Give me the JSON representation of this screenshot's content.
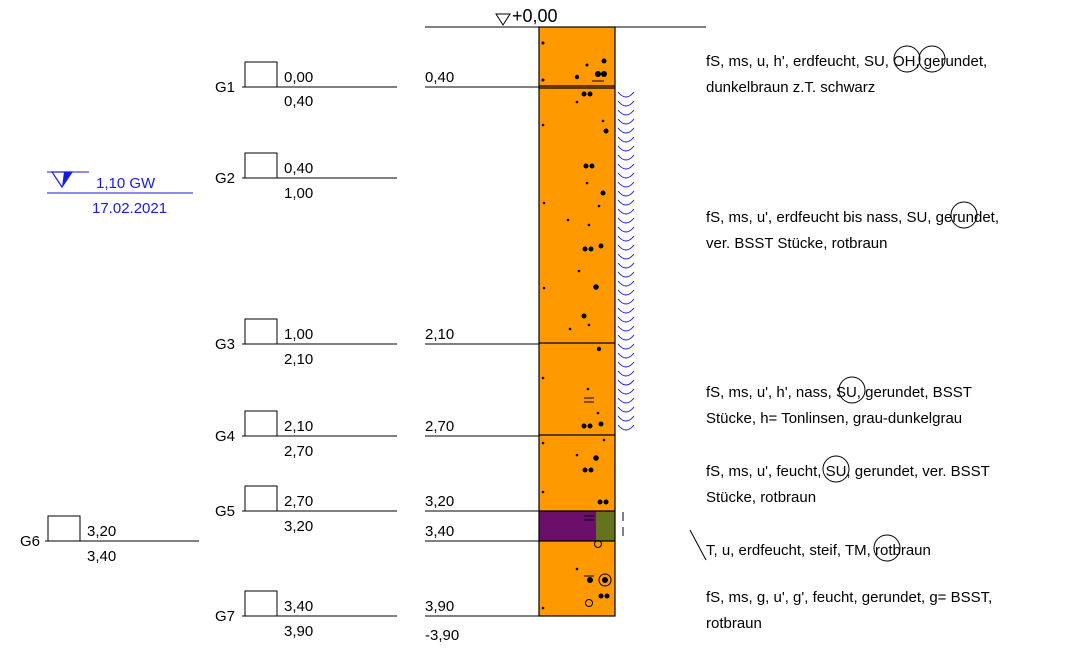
{
  "top_level": "+0,00",
  "groundwater": {
    "depth": "1,10 GW",
    "date": "17.02.2021",
    "color": "#1a1ae6"
  },
  "samples": [
    {
      "id": "G1",
      "top": "0,00",
      "bottom": "0,40"
    },
    {
      "id": "G2",
      "top": "0,40",
      "bottom": "1,00"
    },
    {
      "id": "G3",
      "top": "1,00",
      "bottom": "2,10"
    },
    {
      "id": "G4",
      "top": "2,10",
      "bottom": "2,70"
    },
    {
      "id": "G5",
      "top": "2,70",
      "bottom": "3,20"
    },
    {
      "id": "G6",
      "top": "3,20",
      "bottom": "3,40"
    },
    {
      "id": "G7",
      "top": "3,40",
      "bottom": "3,90"
    }
  ],
  "layer_depths": [
    "0,40",
    "2,10",
    "2,70",
    "3,20",
    "3,40",
    "3,90"
  ],
  "final_depth": "-3,90",
  "colors": {
    "sand": "#ff9900",
    "clay": "#6b0f6b",
    "silt_band": "#66731e"
  },
  "descriptions": [
    {
      "pre": "fS, ms, u, h', erdfeucht, ",
      "symbols": [
        "SU",
        "OH"
      ],
      "post": ", gerundet,",
      "line2": "dunkelbraun z.T. schwarz"
    },
    {
      "pre": "fS, ms, u', erdfeucht bis nass, ",
      "symbols": [
        "SU"
      ],
      "post": ", gerundet,",
      "line2": "ver. BSST Stücke, rotbraun"
    },
    {
      "pre": "fS, ms, u', h', nass, ",
      "symbols": [
        "SU"
      ],
      "post": ", gerundet, BSST",
      "line2": "Stücke, h= Tonlinsen, grau-dunkelgrau"
    },
    {
      "pre": "fS, ms, u', feucht, ",
      "symbols": [
        "SU"
      ],
      "post": ", gerundet, ver. BSST",
      "line2": "Stücke, rotbraun"
    },
    {
      "pre": "T, u, erdfeucht, steif, ",
      "symbols": [
        "TM"
      ],
      "post": ", rotbraun",
      "line2": ""
    },
    {
      "pre": "fS, ms, g, u', g', feucht, gerundet, g= BSST,",
      "symbols": [],
      "post": "",
      "line2": "rotbraun"
    }
  ]
}
